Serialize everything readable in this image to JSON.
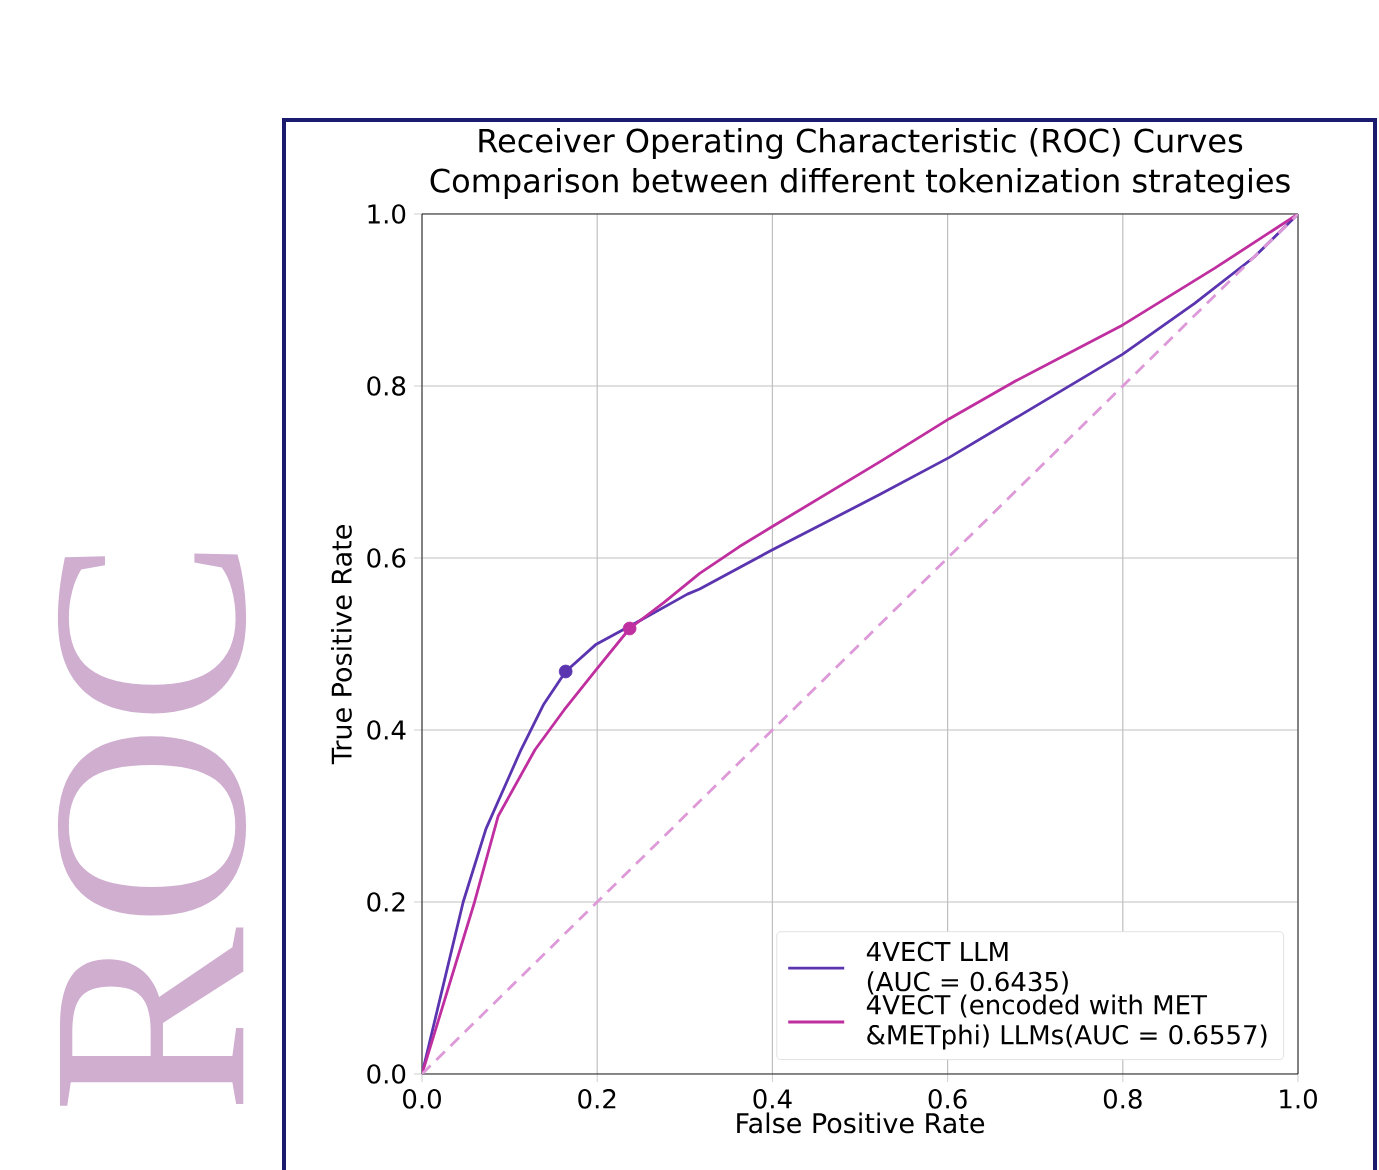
{
  "chart_data": {
    "type": "line",
    "title": "Receiver Operating Characteristic (ROC) Curves",
    "subtitle": "Comparison between different tokenization strategies",
    "xlabel": "False Positive Rate",
    "ylabel": "True Positive Rate",
    "annotations": [
      "ROC"
    ],
    "xlim": [
      0,
      1
    ],
    "ylim": [
      0,
      1
    ],
    "xticks": [
      {
        "value": 0,
        "label": "0.0"
      },
      {
        "value": 0.2,
        "label": "0.2"
      },
      {
        "value": 0.4,
        "label": "0.4"
      },
      {
        "value": 0.6,
        "label": "0.6"
      },
      {
        "value": 0.8,
        "label": "0.8"
      },
      {
        "value": 1,
        "label": "1.0"
      }
    ],
    "yticks": [
      {
        "value": 0,
        "label": "0.0"
      },
      {
        "value": 0.2,
        "label": "0.2"
      },
      {
        "value": 0.4,
        "label": "0.4"
      },
      {
        "value": 0.6,
        "label": "0.6"
      },
      {
        "value": 0.8,
        "label": "0.8"
      },
      {
        "value": 1,
        "label": "1.0"
      }
    ],
    "grid": true,
    "legend": "bottom right",
    "series": [
      {
        "name": "4VECT LLM (AUC = 0.6435)",
        "color": "#5b35b0",
        "x": [
          0,
          0.047,
          0.073,
          0.113,
          0.139,
          0.164,
          0.198,
          0.25,
          0.303,
          0.317,
          0.399,
          0.523,
          0.602,
          0.678,
          0.8,
          0.882,
          0.95,
          1
        ],
        "values": [
          0,
          0.2,
          0.285,
          0.377,
          0.43,
          0.468,
          0.499,
          0.528,
          0.558,
          0.564,
          0.609,
          0.674,
          0.717,
          0.763,
          0.837,
          0.896,
          0.95,
          1
        ]
      },
      {
        "name": "4VECT (encoded with MET &METphi) LLMs(AUC = 0.6557)",
        "color": "#c02fa0",
        "x": [
          0,
          0.06,
          0.087,
          0.129,
          0.162,
          0.198,
          0.237,
          0.276,
          0.317,
          0.362,
          0.399,
          0.523,
          0.602,
          0.678,
          0.8,
          0.905,
          1
        ],
        "values": [
          0,
          0.2,
          0.3,
          0.377,
          0.423,
          0.469,
          0.518,
          0.548,
          0.582,
          0.613,
          0.636,
          0.712,
          0.762,
          0.806,
          0.871,
          0.937,
          1
        ]
      },
      {
        "color": "#dd99d8",
        "line_style": "dashed",
        "x": [
          0,
          1
        ],
        "values": [
          0,
          1
        ]
      },
      {
        "type": "scatter",
        "marker": "circle",
        "color": "#5b35b0",
        "x": [
          0.164
        ],
        "values": [
          0.468
        ]
      },
      {
        "type": "scatter",
        "marker": "circle",
        "color": "#c02fa0",
        "x": [
          0.237
        ],
        "values": [
          0.518
        ]
      }
    ]
  }
}
